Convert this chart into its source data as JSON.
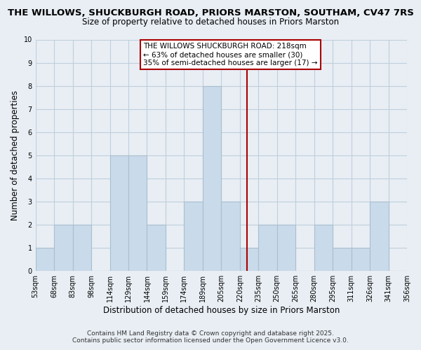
{
  "title_line1": "THE WILLOWS, SHUCKBURGH ROAD, PRIORS MARSTON, SOUTHAM, CV47 7RS",
  "title_line2": "Size of property relative to detached houses in Priors Marston",
  "xlabel": "Distribution of detached houses by size in Priors Marston",
  "ylabel": "Number of detached properties",
  "footer_line1": "Contains HM Land Registry data © Crown copyright and database right 2025.",
  "footer_line2": "Contains public sector information licensed under the Open Government Licence v3.0.",
  "bar_heights": [
    1,
    2,
    2,
    0,
    5,
    5,
    2,
    0,
    3,
    8,
    3,
    1,
    2,
    2,
    0,
    2,
    1,
    1,
    3,
    0
  ],
  "tick_labels": [
    "53sqm",
    "68sqm",
    "83sqm",
    "98sqm",
    "114sqm",
    "129sqm",
    "144sqm",
    "159sqm",
    "174sqm",
    "189sqm",
    "205sqm",
    "220sqm",
    "235sqm",
    "250sqm",
    "265sqm",
    "280sqm",
    "295sqm",
    "311sqm",
    "326sqm",
    "341sqm",
    "356sqm"
  ],
  "bar_color": "#c9daea",
  "bar_edgecolor": "#aabfcf",
  "grid_color": "#c0cedc",
  "vline_color": "#aa0000",
  "annotation_title": "THE WILLOWS SHUCKBURGH ROAD: 218sqm",
  "annotation_line2": "← 63% of detached houses are smaller (30)",
  "annotation_line3": "35% of semi-detached houses are larger (17) →",
  "annotation_box_edgecolor": "#aa0000",
  "ylim": [
    0,
    10
  ],
  "yticks": [
    0,
    1,
    2,
    3,
    4,
    5,
    6,
    7,
    8,
    9,
    10
  ],
  "background_color": "#e8eef4",
  "plot_bg_color": "#e8eef4",
  "title_fontsize": 9.5,
  "subtitle_fontsize": 8.5
}
